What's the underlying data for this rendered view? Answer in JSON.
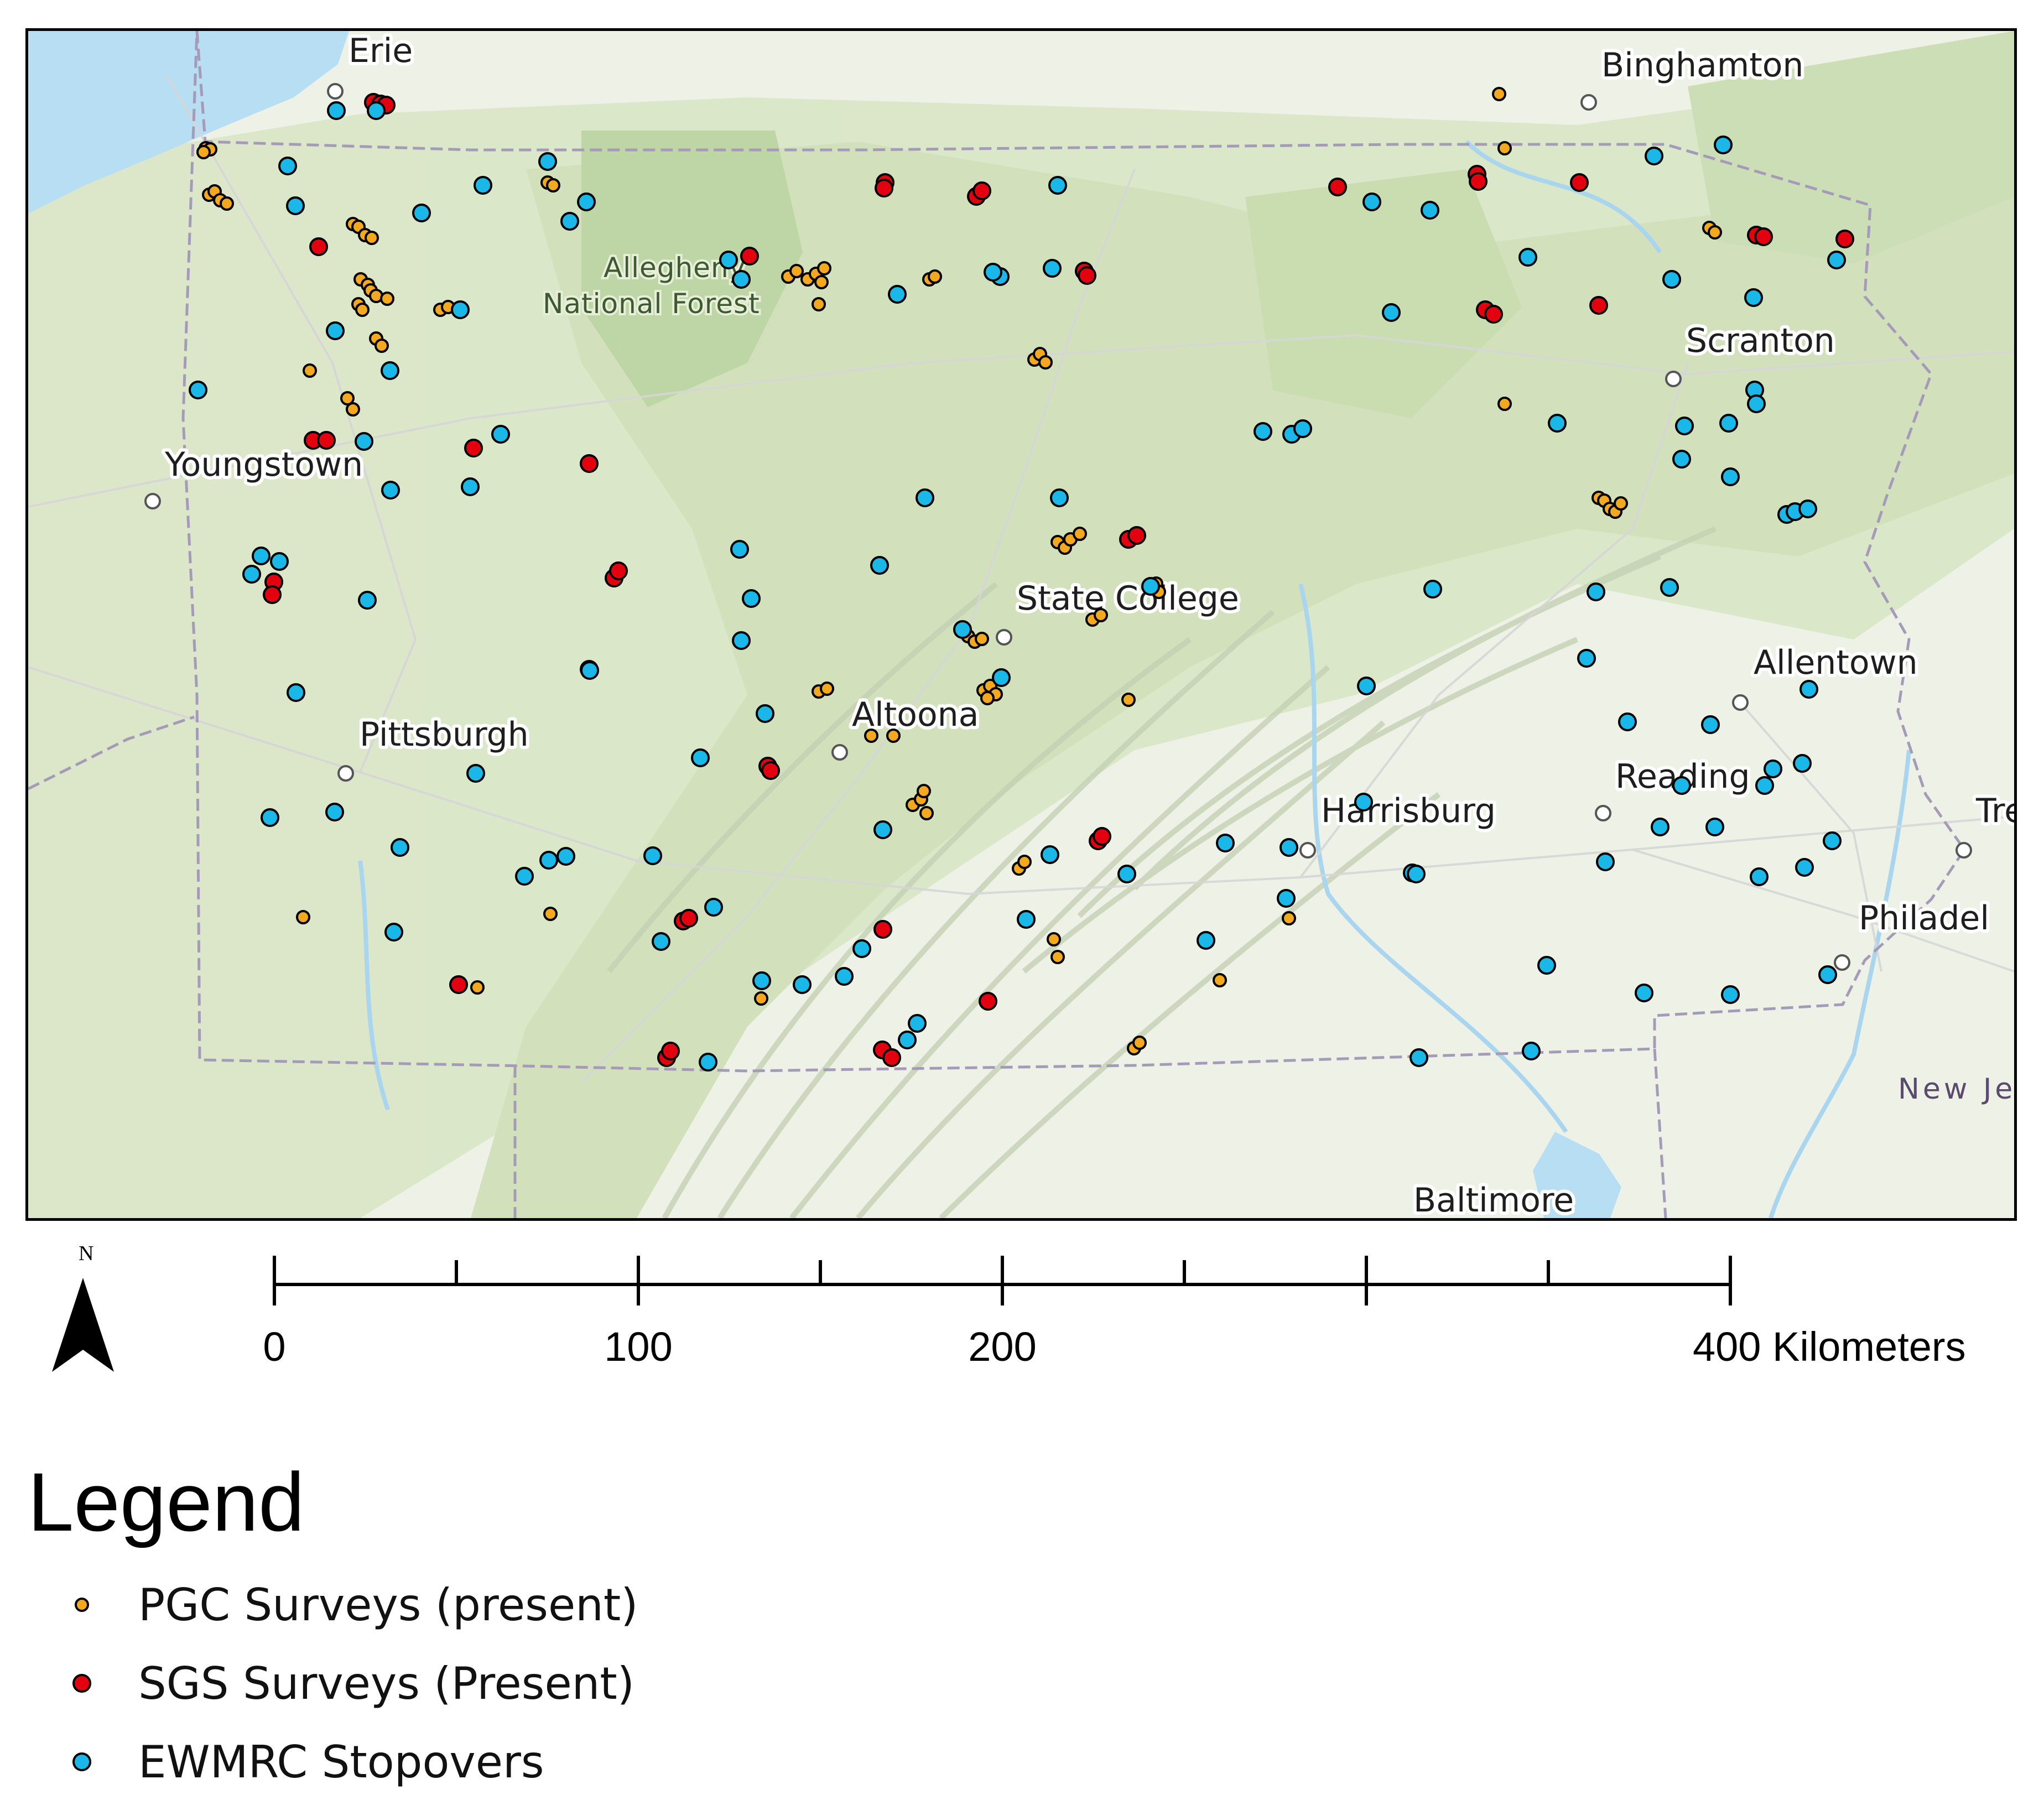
{
  "map": {
    "cities": [
      {
        "name": "Erie"
      },
      {
        "name": "Binghamton"
      },
      {
        "name": "Youngstown"
      },
      {
        "name": "Scranton"
      },
      {
        "name": "State College"
      },
      {
        "name": "Allentown"
      },
      {
        "name": "Altoona"
      },
      {
        "name": "Pittsburgh"
      },
      {
        "name": "Reading"
      },
      {
        "name": "Harrisburg"
      },
      {
        "name": "Tre"
      },
      {
        "name": "Philadel"
      },
      {
        "name": "Baltimore"
      }
    ],
    "forest_label": [
      "Allegheny",
      "National Forest"
    ],
    "state_label": "New Jer",
    "north_label": "N",
    "colors": {
      "pgc": "#f4a81d",
      "sgs": "#e3000f",
      "ewmrc": "#1ab8e8",
      "outline": "#000000"
    }
  },
  "scale_bar": {
    "labels": [
      "0",
      "100",
      "200",
      "400 Kilometers"
    ]
  },
  "legend": {
    "title": "Legend",
    "items": [
      {
        "label": "PGC Surveys (present)",
        "color": "#f4a81d"
      },
      {
        "label": "SGS Surveys (Present)",
        "color": "#e3000f"
      },
      {
        "label": "EWMRC Stopovers",
        "color": "#1ab8e8"
      }
    ]
  }
}
